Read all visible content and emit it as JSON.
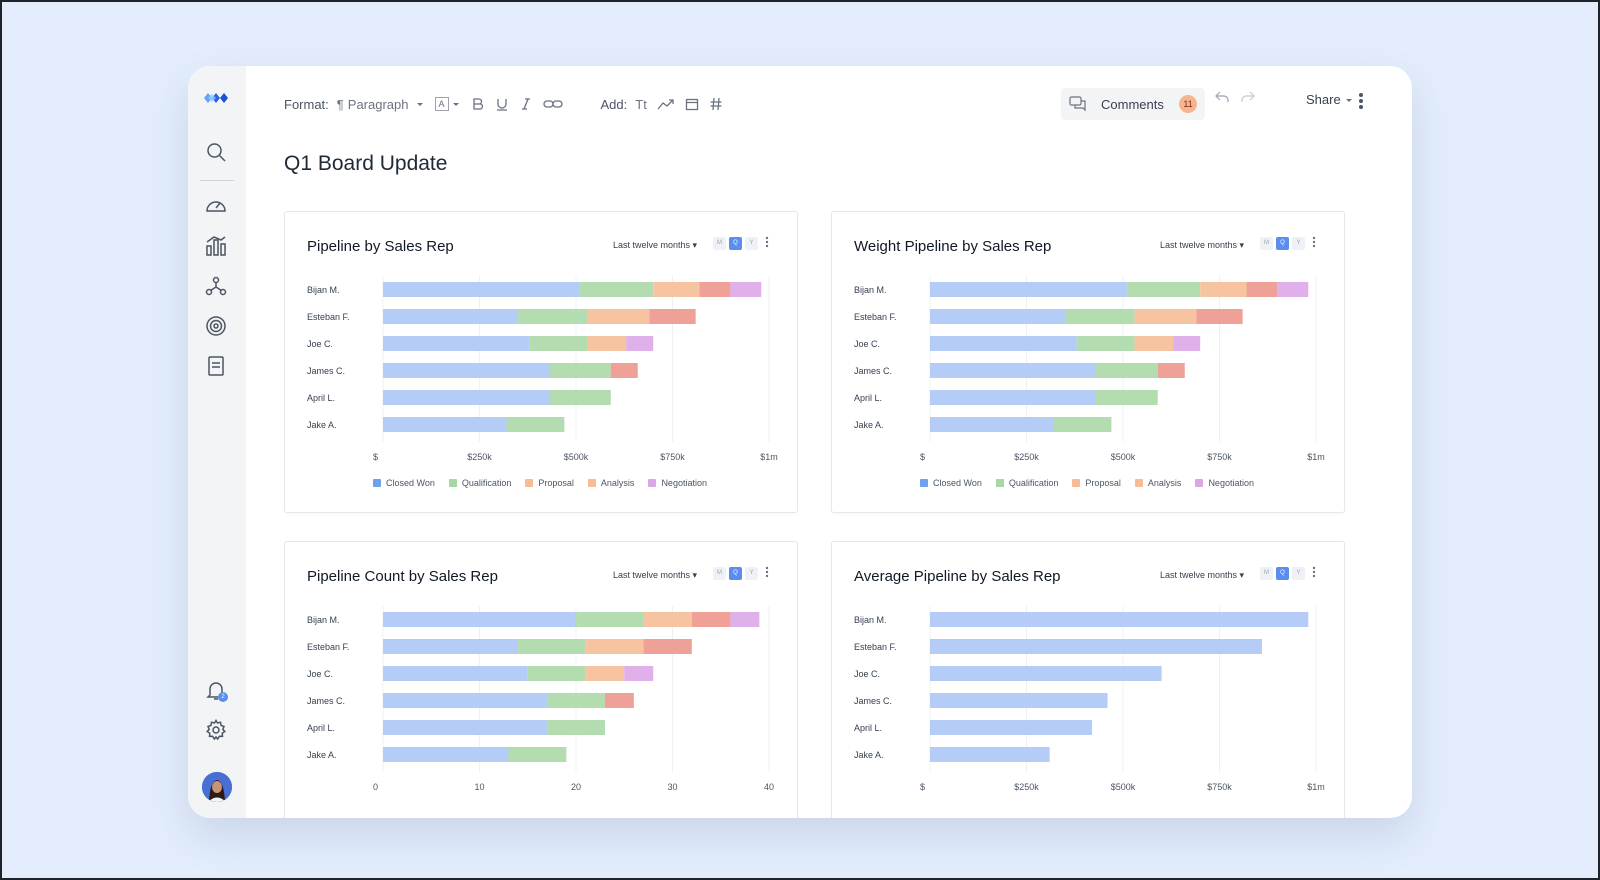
{
  "toolbar": {
    "format_label": "Format:",
    "paragraph_label": "Paragraph",
    "font_label": "A",
    "add_label": "Add:",
    "text_label": "Tt"
  },
  "comments": {
    "label": "Comments",
    "count": "11"
  },
  "share_label": "Share",
  "notification_count": "2",
  "page_title": "Q1 Board Update",
  "period_buttons": [
    "M",
    "Q",
    "Y"
  ],
  "active_period": "Q",
  "palette": {
    "Closed Won": "#b4ccf6",
    "Qualification": "#b3dcb0",
    "Proposal": "#f7c4a2",
    "Analysis": "#f0a197",
    "Negotiation": "#dfb0e9",
    "legend_Closed Won": "#6ea0ee",
    "legend_Qualification": "#a7d7a3",
    "legend_Proposal": "#f7bc96",
    "legend_Analysis": "#f7bc96",
    "legend_Negotiation": "#dba6e6"
  },
  "chart_data": [
    {
      "type": "bar",
      "title": "Pipeline by Sales Rep",
      "range_label": "Last twelve months",
      "categories": [
        "Bijan M.",
        "Esteban F.",
        "Joe C.",
        "James C.",
        "April L.",
        "Jake A."
      ],
      "xlim": [
        0,
        1000000
      ],
      "xticks": [
        "$",
        "$250k",
        "$500k",
        "$750k",
        "$1m"
      ],
      "series": [
        {
          "name": "Closed Won",
          "values": [
            510000,
            350000,
            380000,
            430000,
            430000,
            320000
          ]
        },
        {
          "name": "Qualification",
          "values": [
            190000,
            180000,
            150000,
            160000,
            160000,
            150000
          ]
        },
        {
          "name": "Proposal",
          "values": [
            120000,
            160000,
            100000,
            0,
            0,
            0
          ]
        },
        {
          "name": "Analysis",
          "values": [
            80000,
            120000,
            0,
            70000,
            0,
            0
          ]
        },
        {
          "name": "Negotiation",
          "values": [
            80000,
            0,
            70000,
            0,
            0,
            0
          ]
        }
      ],
      "legend": [
        "Closed Won",
        "Qualification",
        "Proposal",
        "Analysis",
        "Negotiation"
      ],
      "grid": true
    },
    {
      "type": "bar",
      "title": "Weight Pipeline by Sales Rep",
      "range_label": "Last twelve months",
      "categories": [
        "Bijan M.",
        "Esteban F.",
        "Joe C.",
        "James C.",
        "April L.",
        "Jake A."
      ],
      "xlim": [
        0,
        1000000
      ],
      "xticks": [
        "$",
        "$250k",
        "$500k",
        "$750k",
        "$1m"
      ],
      "series": [
        {
          "name": "Closed Won",
          "values": [
            510000,
            350000,
            380000,
            430000,
            430000,
            320000
          ]
        },
        {
          "name": "Qualification",
          "values": [
            190000,
            180000,
            150000,
            160000,
            160000,
            150000
          ]
        },
        {
          "name": "Proposal",
          "values": [
            120000,
            160000,
            100000,
            0,
            0,
            0
          ]
        },
        {
          "name": "Analysis",
          "values": [
            80000,
            120000,
            0,
            70000,
            0,
            0
          ]
        },
        {
          "name": "Negotiation",
          "values": [
            80000,
            0,
            70000,
            0,
            0,
            0
          ]
        }
      ],
      "legend": [
        "Closed Won",
        "Qualification",
        "Proposal",
        "Analysis",
        "Negotiation"
      ],
      "grid": true
    },
    {
      "type": "bar",
      "title": "Pipeline Count by Sales Rep",
      "range_label": "Last twelve months",
      "categories": [
        "Bijan M.",
        "Esteban F.",
        "Joe C.",
        "James C.",
        "April L.",
        "Jake A."
      ],
      "xlim": [
        0,
        40
      ],
      "xticks": [
        "0",
        "10",
        "20",
        "30",
        "40"
      ],
      "series": [
        {
          "name": "Closed Won",
          "values": [
            20,
            14,
            15,
            17,
            17,
            13
          ]
        },
        {
          "name": "Qualification",
          "values": [
            7,
            7,
            6,
            6,
            6,
            6
          ]
        },
        {
          "name": "Proposal",
          "values": [
            5,
            6,
            4,
            0,
            0,
            0
          ]
        },
        {
          "name": "Analysis",
          "values": [
            4,
            5,
            0,
            3,
            0,
            0
          ]
        },
        {
          "name": "Negotiation",
          "values": [
            3,
            0,
            3,
            0,
            0,
            0
          ]
        }
      ],
      "grid": true
    },
    {
      "type": "bar",
      "title": "Average Pipeline by Sales Rep",
      "range_label": "Last twelve months",
      "categories": [
        "Bijan M.",
        "Esteban F.",
        "Joe C.",
        "James C.",
        "April L.",
        "Jake A."
      ],
      "xlim": [
        0,
        1000000
      ],
      "xticks": [
        "$",
        "$250k",
        "$500k",
        "$750k",
        "$1m"
      ],
      "series": [
        {
          "name": "Closed Won",
          "values": [
            980000,
            860000,
            600000,
            460000,
            420000,
            310000
          ]
        }
      ],
      "grid": true
    }
  ]
}
